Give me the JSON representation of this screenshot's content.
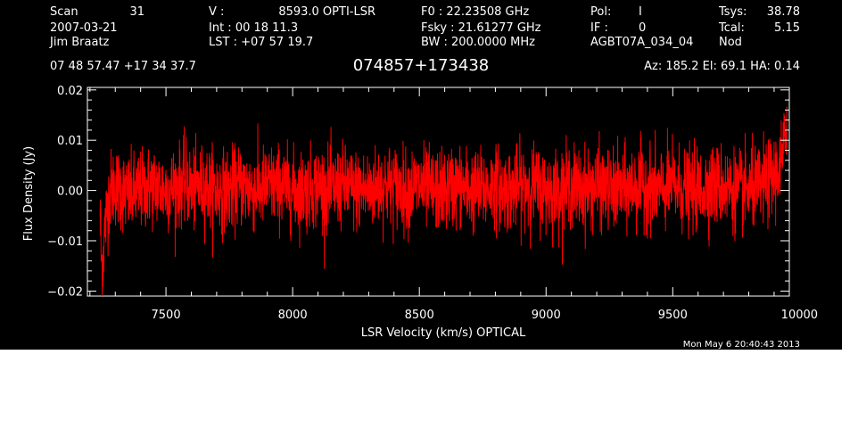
{
  "header": {
    "row1": [
      "Scan",
      "31",
      "V   :",
      "8593.0 OPTI-LSR",
      "F0   :  22.23508 GHz",
      "Pol:",
      "I",
      "Tsys:",
      "38.78"
    ],
    "row2": [
      "2007-03-21",
      "Int  :   00 18 11.3",
      "Fsky :  21.61277 GHz",
      "IF :",
      "0",
      "Tcal:",
      "5.15"
    ],
    "row3": [
      "Jim Braatz",
      "LST : +07 57 19.7",
      "BW   : 200.0000 MHz",
      "AGBT07A_034_04",
      "Nod"
    ],
    "coords": "07 48 57.47   +17 34 37.7",
    "source": "074857+173438",
    "azelha": "Az: 185.2   El:  69.1   HA:  0.14"
  },
  "chart_data": {
    "type": "line",
    "xlabel": "LSR Velocity (km/s) OPTICAL",
    "ylabel": "Flux Density (Jy)",
    "xlim": [
      7190,
      9960
    ],
    "ylim": [
      -0.021,
      0.0205
    ],
    "xticks": [
      7500,
      8000,
      8500,
      9000,
      9500,
      10000
    ],
    "yticks": [
      -0.02,
      -0.01,
      0.0,
      0.01,
      0.02
    ],
    "ytick_labels": [
      "−0.02",
      "−0.01",
      "0.00",
      "0.01",
      "0.02"
    ],
    "series": [
      {
        "color": "#ff0000",
        "x": [
          7240,
          7245,
          7250,
          7255,
          7260,
          7270,
          7280,
          7300,
          7350,
          7400,
          7450,
          7500,
          7550,
          7575,
          7600,
          7650,
          7700,
          7750,
          7800,
          7850,
          7900,
          7950,
          8000,
          8050,
          8100,
          8150,
          8200,
          8250,
          8300,
          8350,
          8400,
          8450,
          8500,
          8550,
          8600,
          8650,
          8700,
          8750,
          8800,
          8850,
          8900,
          8950,
          9000,
          9050,
          9100,
          9150,
          9200,
          9250,
          9300,
          9350,
          9400,
          9450,
          9500,
          9550,
          9600,
          9650,
          9700,
          9750,
          9800,
          9850,
          9880,
          9900,
          9920,
          9935,
          9945,
          9950
        ],
        "y": [
          -0.004,
          -0.014,
          -0.015,
          -0.01,
          -0.007,
          -0.003,
          0.0,
          0.001,
          -0.001,
          0.0,
          0.001,
          0.0,
          0.001,
          0.002,
          0.0,
          0.001,
          0.0,
          0.0,
          0.001,
          0.0,
          0.001,
          0.001,
          0.0,
          0.0,
          0.001,
          0.0,
          0.001,
          0.0,
          0.0,
          0.001,
          0.001,
          0.0,
          0.001,
          0.0,
          0.0,
          0.001,
          0.0,
          0.0,
          0.001,
          0.0,
          0.001,
          0.001,
          0.0,
          0.0,
          0.001,
          0.0,
          0.001,
          0.0,
          0.0,
          0.001,
          0.001,
          0.0,
          0.001,
          0.0,
          0.0,
          0.001,
          0.001,
          0.0,
          0.0,
          0.001,
          0.002,
          0.003,
          0.004,
          0.007,
          0.011,
          0.015
        ],
        "noise_rms": 0.004
      }
    ]
  },
  "timestamp": "Mon May  6 20:40:43 2013"
}
